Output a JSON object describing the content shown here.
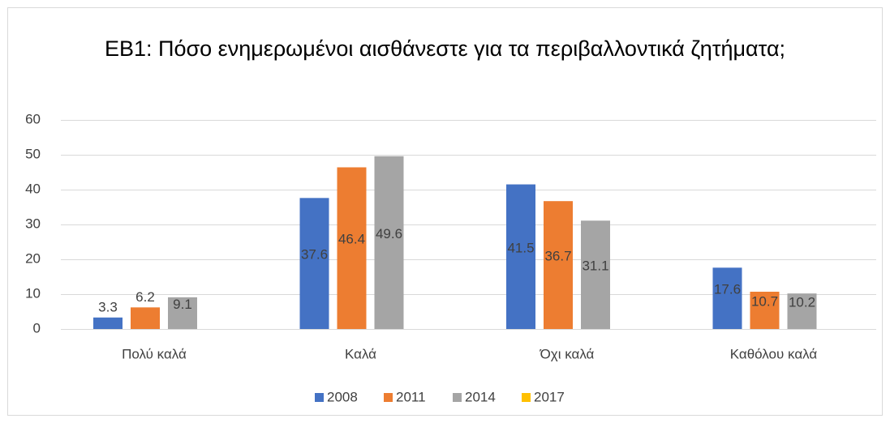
{
  "chart_data": {
    "type": "bar",
    "title": "ΕΒ1: Πόσο ενημερωμένοι αισθάνεστε για τα περιβαλλοντικά ζητήματα;",
    "categories": [
      "Πολύ καλά",
      "Καλά",
      "Όχι καλά",
      "Καθόλου καλά"
    ],
    "series": [
      {
        "name": "2008",
        "color": "#4472c4",
        "values": [
          3.3,
          37.6,
          41.5,
          17.6
        ]
      },
      {
        "name": "2011",
        "color": "#ed7d31",
        "values": [
          6.2,
          46.4,
          36.7,
          10.7
        ]
      },
      {
        "name": "2014",
        "color": "#a5a5a5",
        "values": [
          9.1,
          49.6,
          31.1,
          10.2
        ]
      },
      {
        "name": "2017",
        "color": "#ffc000",
        "values": [
          null,
          null,
          null,
          null
        ]
      }
    ],
    "ylim": [
      0,
      60
    ],
    "yticks": [
      0,
      10,
      20,
      30,
      40,
      50,
      60
    ],
    "grid": true,
    "legend": "bottom"
  }
}
